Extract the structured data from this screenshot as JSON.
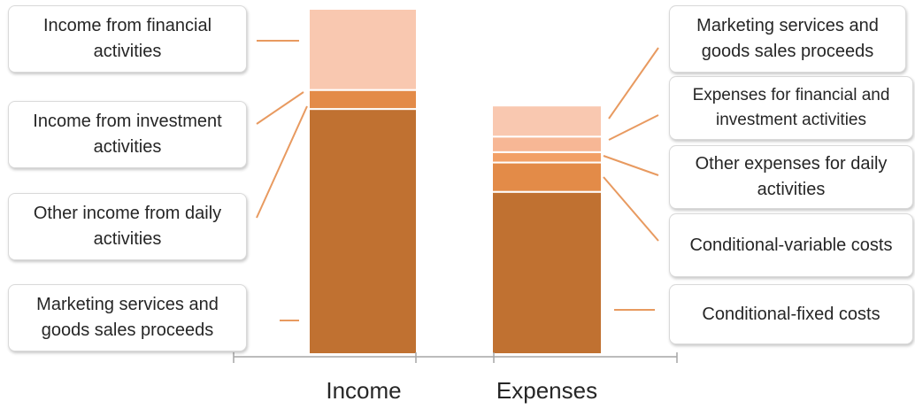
{
  "chart_data": {
    "type": "bar",
    "stacked": true,
    "categories": [
      "Income",
      "Expenses"
    ],
    "ylim": [
      0,
      100
    ],
    "grid": false,
    "legend": "none",
    "series_colors": [
      "#c07131",
      "#e38b48",
      "#f2a066",
      "#f7b795",
      "#f9c8b0"
    ],
    "stacks": [
      {
        "category": "Income",
        "segments": [
          {
            "name": "Marketing services and goods sales proceeds",
            "value": 71,
            "color": "#c07131"
          },
          {
            "name": "Other income from daily activities",
            "value": 0,
            "color": "#f2a066"
          },
          {
            "name": "Income from investment activities",
            "value": 5.5,
            "color": "#e38b48"
          },
          {
            "name": "Income from financial activities",
            "value": 23.5,
            "color": "#f9c8b0"
          }
        ]
      },
      {
        "category": "Expenses",
        "segments": [
          {
            "name": "Conditional-fixed costs",
            "value": 47,
            "color": "#c07131"
          },
          {
            "name": "Conditional-variable costs",
            "value": 8.5,
            "color": "#e38b48"
          },
          {
            "name": "Other expenses for daily activities",
            "value": 3,
            "color": "#f2a066"
          },
          {
            "name": "Expenses for financial and investment activities",
            "value": 4.5,
            "color": "#f7b795"
          },
          {
            "name": "Marketing services and goods sales proceeds",
            "value": 9,
            "color": "#f9c8b0"
          }
        ]
      }
    ],
    "callouts": [
      {
        "side": "left",
        "text": "Income from financial activities"
      },
      {
        "side": "left",
        "text": "Income from investment activities"
      },
      {
        "side": "left",
        "text": "Other income from daily activities"
      },
      {
        "side": "left",
        "text": "Marketing services and goods sales proceeds"
      },
      {
        "side": "right",
        "text": "Marketing services and goods sales proceeds"
      },
      {
        "side": "right",
        "text": "Expenses for financial and investment activities"
      },
      {
        "side": "right",
        "text": "Other expenses for daily activities"
      },
      {
        "side": "right",
        "text": "Conditional-variable costs"
      },
      {
        "side": "right",
        "text": "Conditional-fixed costs"
      }
    ],
    "leader_color": "#e89a60",
    "axis_color": "#a6a6a6"
  }
}
